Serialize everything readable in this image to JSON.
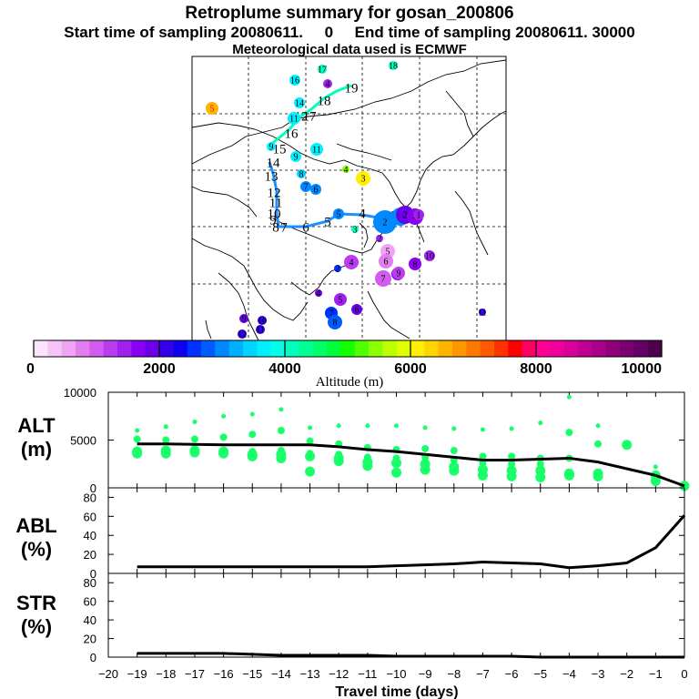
{
  "title": "Retroplume summary for gosan_200806",
  "subtitle": "Start time of sampling 20080611.     0     End time of sampling 20080611. 30000",
  "subtitle2": "Meteorological data used is ECMWF",
  "colorbar": {
    "label": "Altitude (m)",
    "ticks": [
      "0",
      "2000",
      "4000",
      "6000",
      "8000",
      "10000"
    ],
    "colors": [
      "#fce4fc",
      "#f6c4f8",
      "#efa4f4",
      "#e37ef0",
      "#d25cf0",
      "#bb3cf0",
      "#a020f0",
      "#8a00f0",
      "#6a00ea",
      "#3300e8",
      "#1000f0",
      "#0032ff",
      "#005cff",
      "#0088ff",
      "#00b0ff",
      "#00d4ff",
      "#00f0ff",
      "#00ffe6",
      "#00ffbf",
      "#00ff96",
      "#00ff6a",
      "#00ff3a",
      "#14ff00",
      "#50ff00",
      "#8cff00",
      "#bcff00",
      "#e0ff00",
      "#fff000",
      "#ffd400",
      "#ffb400",
      "#ff9600",
      "#ff7800",
      "#ff5a00",
      "#ff3200",
      "#ff0000",
      "#ff0066",
      "#ff0090",
      "#f0009a",
      "#d8009a",
      "#c00090",
      "#a80088",
      "#900078",
      "#7a0070",
      "#640064",
      "#4c0050"
    ]
  },
  "map": {
    "numbers": [
      {
        "t": "5",
        "c": "#ffb400",
        "lbl": "#ff0000"
      },
      {
        "t": "16",
        "c": "#00f0ff",
        "lbl": "#000"
      },
      {
        "t": "17",
        "c": "#00ffbf",
        "lbl": "#000"
      },
      {
        "t": "18",
        "c": "#00ffbf",
        "lbl": "#000"
      },
      {
        "t": "4",
        "c": "#a020f0",
        "lbl": "#000"
      },
      {
        "t": "19",
        "c": "#00ffbf",
        "lbl": "#000"
      },
      {
        "t": "14",
        "c": "#00f0ff",
        "lbl": "#000"
      },
      {
        "t": "18",
        "c": "#00f0ff",
        "lbl": "#000"
      },
      {
        "t": "12",
        "c": "#00f0ff",
        "lbl": "#000"
      },
      {
        "t": "11",
        "c": "#00f0ff",
        "lbl": "#000"
      },
      {
        "t": "17",
        "c": "#00f0ff",
        "lbl": "#000"
      },
      {
        "t": "16",
        "c": "#00f0ff",
        "lbl": "#000"
      },
      {
        "t": "9",
        "c": "#00f0ff",
        "lbl": "#000"
      },
      {
        "t": "15",
        "c": "#00f0ff",
        "lbl": "#000"
      },
      {
        "t": "11",
        "c": "#00f0ff",
        "lbl": "#000"
      },
      {
        "t": "9",
        "c": "#00f0ff",
        "lbl": "#000"
      },
      {
        "t": "4",
        "c": "#8cff00",
        "lbl": "#000"
      },
      {
        "t": "3",
        "c": "#fff000",
        "lbl": "#000"
      },
      {
        "t": "14",
        "c": "#00f0ff",
        "lbl": "#000"
      },
      {
        "t": "13",
        "c": "#00f0ff",
        "lbl": "#000"
      },
      {
        "t": "8",
        "c": "#00d4ff",
        "lbl": "#000"
      },
      {
        "t": "7",
        "c": "#0088ff",
        "lbl": "#000"
      },
      {
        "t": "6",
        "c": "#0088ff",
        "lbl": "#000"
      },
      {
        "t": "12",
        "c": "#00f0ff",
        "lbl": "#000"
      },
      {
        "t": "11",
        "c": "#00f0ff",
        "lbl": "#000"
      },
      {
        "t": "10",
        "c": "#00f0ff",
        "lbl": "#000"
      },
      {
        "t": "9",
        "c": "#00f0ff",
        "lbl": "#000"
      },
      {
        "t": "8",
        "c": "#00f0ff",
        "lbl": "#000"
      },
      {
        "t": "7",
        "c": "#00f0ff",
        "lbl": "#000"
      },
      {
        "t": "6",
        "c": "#00f0ff",
        "lbl": "#000"
      },
      {
        "t": "5",
        "c": "#0088ff",
        "lbl": "#000"
      },
      {
        "t": "5",
        "c": "#0088ff",
        "lbl": "#000"
      },
      {
        "t": "4",
        "c": "#0088ff",
        "lbl": "#000"
      },
      {
        "t": "3",
        "c": "#0088ff",
        "lbl": "#000"
      },
      {
        "t": "3",
        "c": "#00ffbf",
        "lbl": "#000"
      },
      {
        "t": "2",
        "c": "#a020f0",
        "lbl": "#000"
      },
      {
        "t": "2",
        "c": "#0088ff",
        "lbl": "#000"
      },
      {
        "t": "1",
        "c": "#0088ff",
        "lbl": "#000"
      },
      {
        "t": "2",
        "c": "#6a00ea",
        "lbl": "#000"
      },
      {
        "t": "4",
        "c": "#8a00f0",
        "lbl": "#000"
      },
      {
        "t": "1",
        "c": "#a020f0",
        "lbl": "#000"
      },
      {
        "t": "5",
        "c": "#efa4f4",
        "lbl": "#000"
      },
      {
        "t": "2",
        "c": "#0032ff",
        "lbl": "#000"
      },
      {
        "t": "4",
        "c": "#bb3cf0",
        "lbl": "#000"
      },
      {
        "t": "6",
        "c": "#e37ef0",
        "lbl": "#000"
      },
      {
        "t": "10",
        "c": "#a020f0",
        "lbl": "#000"
      },
      {
        "t": "8",
        "c": "#8a00f0",
        "lbl": "#000"
      },
      {
        "t": "9",
        "c": "#8a00f0",
        "lbl": "#000"
      },
      {
        "t": "4",
        "c": "#8a00f0",
        "lbl": "#000"
      },
      {
        "t": "7",
        "c": "#d25cf0",
        "lbl": "#000"
      },
      {
        "t": "9",
        "c": "#bb3cf0",
        "lbl": "#000"
      },
      {
        "t": "4",
        "c": "#6a00ea",
        "lbl": "#000"
      },
      {
        "t": "5",
        "c": "#a020f0",
        "lbl": "#000"
      },
      {
        "t": "6",
        "c": "#6a00ea",
        "lbl": "#000"
      },
      {
        "t": "7",
        "c": "#0032ff",
        "lbl": "#000"
      },
      {
        "t": "8",
        "c": "#005cff",
        "lbl": "#000"
      },
      {
        "t": "9",
        "c": "#6a00ea",
        "lbl": "#000"
      },
      {
        "t": "10",
        "c": "#3300e8",
        "lbl": "#000"
      },
      {
        "t": "11",
        "c": "#3300e8",
        "lbl": "#000"
      },
      {
        "t": "12",
        "c": "#3300e8",
        "lbl": "#000"
      },
      {
        "t": "11",
        "c": "#3300e8",
        "lbl": "#000"
      }
    ]
  },
  "chart_data": [
    {
      "name": "ALT",
      "type": "scatter+line",
      "ylabel": "ALT\n(m)",
      "ylim": [
        0,
        10000
      ],
      "yticks": [
        "10000",
        "5000",
        "0"
      ],
      "xlim": [
        -20,
        0
      ],
      "mean_line": {
        "x": [
          -19,
          -18,
          -17,
          -16,
          -15,
          -14,
          -13,
          -12,
          -11,
          -10,
          -9,
          -8,
          -7,
          -6,
          -5,
          -4,
          -3,
          -2,
          -1,
          0
        ],
        "y": [
          4600,
          4600,
          4550,
          4500,
          4500,
          4500,
          4500,
          4300,
          4000,
          3800,
          3500,
          3200,
          2900,
          2900,
          3000,
          3100,
          2700,
          2000,
          1300,
          200
        ]
      },
      "points": [
        {
          "x": -19,
          "ys": [
            6000,
            5100,
            3800,
            3600
          ]
        },
        {
          "x": -18,
          "ys": [
            6400,
            5000,
            3900,
            3600
          ]
        },
        {
          "x": -17,
          "ys": [
            6900,
            5100,
            3900,
            3700
          ]
        },
        {
          "x": -16,
          "ys": [
            7500,
            5300,
            3800,
            3600
          ]
        },
        {
          "x": -15,
          "ys": [
            7700,
            5600,
            3800,
            3500,
            3300
          ]
        },
        {
          "x": -14,
          "ys": [
            8200,
            6000,
            3900,
            3500,
            3100
          ]
        },
        {
          "x": -13,
          "ys": [
            6300,
            4900,
            3600,
            3300,
            1700
          ]
        },
        {
          "x": -12,
          "ys": [
            6500,
            4600,
            3500,
            3100,
            2800
          ]
        },
        {
          "x": -11,
          "ys": [
            6500,
            4200,
            3200,
            2700,
            2300
          ]
        },
        {
          "x": -10,
          "ys": [
            6500,
            4000,
            3100,
            2600,
            1600
          ]
        },
        {
          "x": -9,
          "ys": [
            6300,
            4100,
            3200,
            2500,
            1900
          ]
        },
        {
          "x": -8,
          "ys": [
            6200,
            3900,
            2900,
            2200,
            1800
          ]
        },
        {
          "x": -7,
          "ys": [
            6100,
            3300,
            2600,
            1900,
            1300
          ]
        },
        {
          "x": -6,
          "ys": [
            6200,
            3300,
            2500,
            1800,
            1200
          ]
        },
        {
          "x": -5,
          "ys": [
            6800,
            3100,
            2500,
            1800,
            1100
          ]
        },
        {
          "x": -4,
          "ys": [
            9500,
            5800,
            3100,
            1500,
            1300
          ]
        },
        {
          "x": -3,
          "ys": [
            6500,
            4600,
            1500,
            1200
          ]
        },
        {
          "x": -2,
          "ys": [
            4500
          ]
        },
        {
          "x": -1,
          "ys": [
            2200,
            1300,
            700
          ]
        },
        {
          "x": 0,
          "ys": [
            200
          ]
        }
      ]
    },
    {
      "name": "ABL",
      "type": "line",
      "ylabel": "ABL\n(%)",
      "ylim": [
        0,
        90
      ],
      "yticks": [
        "80",
        "60",
        "40",
        "20",
        "0"
      ],
      "xlim": [
        -20,
        0
      ],
      "x": [
        -19,
        -18,
        -17,
        -16,
        -15,
        -14,
        -13,
        -12,
        -11,
        -10,
        -9,
        -8,
        -7,
        -6,
        -5,
        -4,
        -3,
        -2,
        -1,
        0
      ],
      "y": [
        7,
        7,
        7,
        7,
        7,
        7,
        7,
        7,
        7,
        8,
        9,
        10,
        12,
        11,
        10,
        6,
        8,
        11,
        27,
        61
      ]
    },
    {
      "name": "STR",
      "type": "line",
      "ylabel": "STR\n(%)",
      "ylim": [
        0,
        90
      ],
      "yticks": [
        "80",
        "60",
        "40",
        "20",
        "0"
      ],
      "xlim": [
        -20,
        0
      ],
      "x": [
        -19,
        -18,
        -17,
        -16,
        -15,
        -14,
        -13,
        -12,
        -11,
        -10,
        -9,
        -8,
        -7,
        -6,
        -5,
        -4,
        -3,
        -2,
        -1,
        0
      ],
      "y": [
        4,
        4,
        4,
        4,
        3,
        2,
        2,
        2,
        2,
        1,
        1,
        1,
        1,
        1,
        0,
        0,
        0,
        0,
        0,
        0
      ]
    }
  ],
  "xaxis": {
    "label": "Travel time (days)",
    "ticks": [
      "−20",
      "−19",
      "−18",
      "−17",
      "−16",
      "−15",
      "−14",
      "−13",
      "−12",
      "−11",
      "−10",
      "−9",
      "−8",
      "−7",
      "−6",
      "−5",
      "−4",
      "−3",
      "−2",
      "−1",
      "0"
    ]
  },
  "colors": {
    "points": "#19ff6a",
    "line": "#000000"
  }
}
